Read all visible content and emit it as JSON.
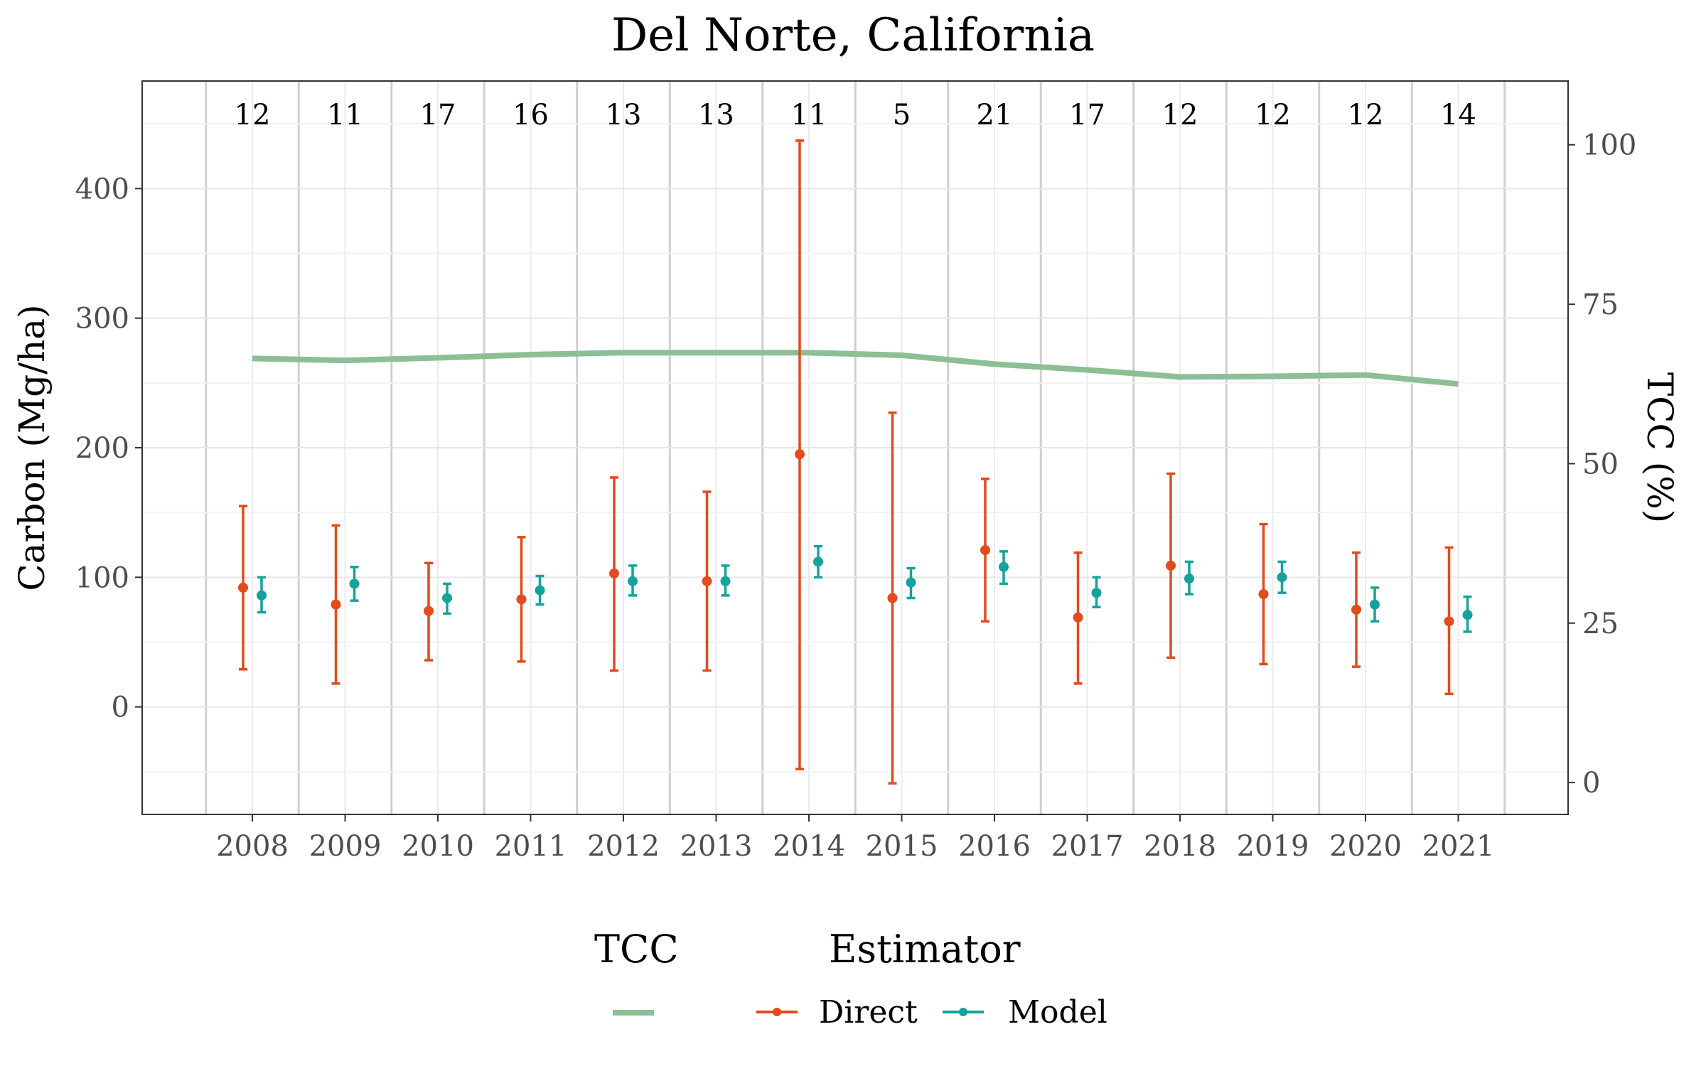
{
  "chart_data": {
    "type": "line",
    "title": "Del Norte, California",
    "xlabel": "",
    "ylabel": "Carbon (Mg/ha)",
    "y2label": "TCC (%)",
    "x": [
      "2008",
      "2009",
      "2010",
      "2011",
      "2012",
      "2013",
      "2014",
      "2015",
      "2016",
      "2017",
      "2018",
      "2019",
      "2020",
      "2021"
    ],
    "ylim": [
      -83,
      483
    ],
    "y2lim": [
      -5,
      110
    ],
    "yticks": [
      0,
      100,
      200,
      300,
      400
    ],
    "y2ticks": [
      0,
      25,
      50,
      75,
      100
    ],
    "grid": true,
    "counts": [
      "12",
      "11",
      "17",
      "16",
      "13",
      "13",
      "11",
      "5",
      "21",
      "17",
      "12",
      "12",
      "12",
      "14"
    ],
    "series": [
      {
        "name": "Direct",
        "color": "#e34a1c",
        "values": [
          92,
          79,
          74,
          83,
          103,
          97,
          195,
          84,
          121,
          69,
          109,
          87,
          75,
          66
        ],
        "lower": [
          29,
          18,
          36,
          35,
          28,
          28,
          -48,
          -59,
          66,
          18,
          38,
          33,
          31,
          10
        ],
        "upper": [
          155,
          140,
          111,
          131,
          177,
          166,
          437,
          227,
          176,
          119,
          180,
          141,
          119,
          123
        ]
      },
      {
        "name": "Model",
        "color": "#13a39c",
        "values": [
          86,
          95,
          84,
          90,
          97,
          97,
          112,
          96,
          108,
          88,
          99,
          100,
          79,
          71
        ],
        "lower": [
          73,
          82,
          72,
          79,
          86,
          86,
          100,
          84,
          95,
          77,
          87,
          88,
          66,
          58
        ],
        "upper": [
          100,
          108,
          95,
          101,
          109,
          109,
          124,
          107,
          120,
          100,
          112,
          112,
          92,
          85
        ]
      },
      {
        "name": "TCC",
        "axis": "right",
        "color": "#8cbf95",
        "values": [
          66.5,
          66.2,
          66.6,
          67.1,
          67.4,
          67.4,
          67.4,
          67.0,
          65.6,
          64.7,
          63.6,
          63.7,
          63.9,
          62.5
        ]
      }
    ],
    "legend": {
      "placement": "bottom",
      "tcc_title": "TCC",
      "estimator_title": "Estimator",
      "entries": [
        "Direct",
        "Model"
      ]
    }
  }
}
